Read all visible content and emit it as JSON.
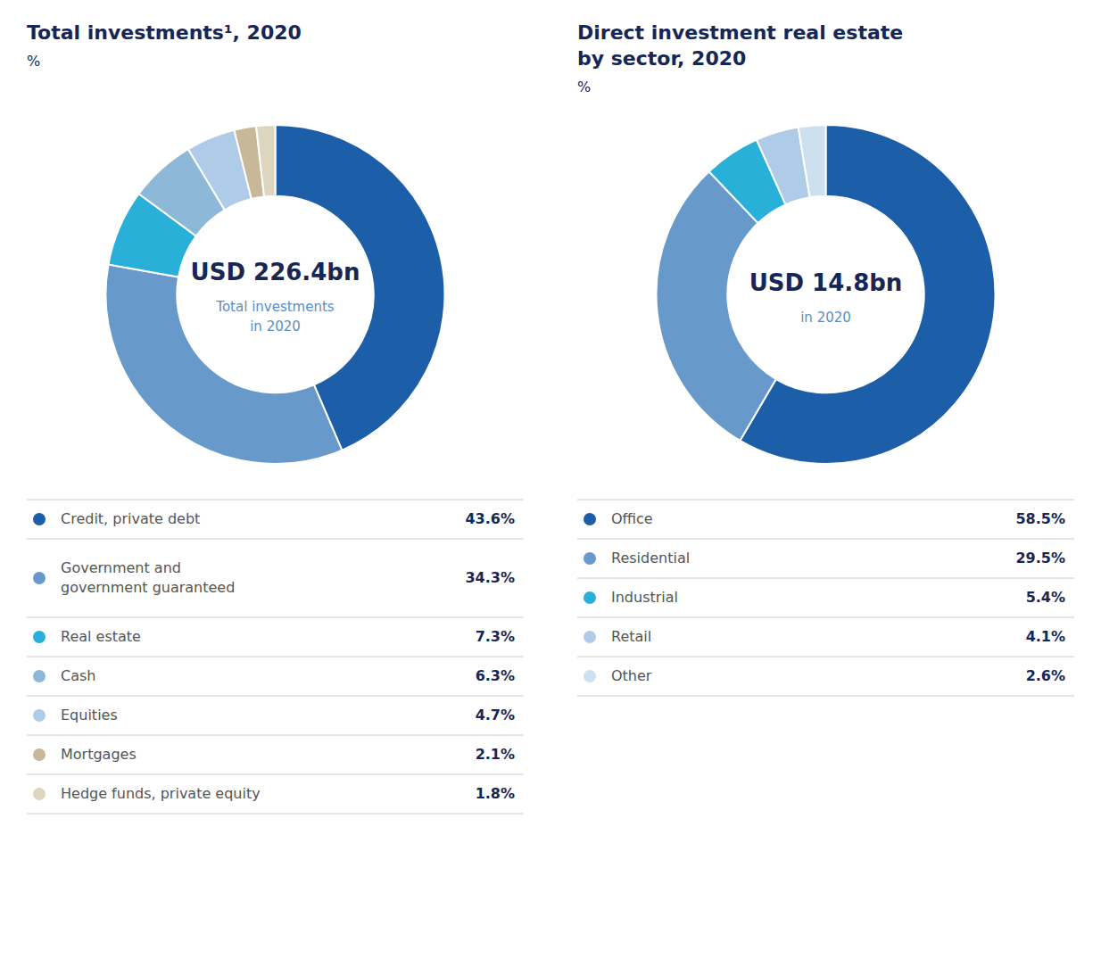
{
  "chart_data": [
    {
      "type": "donut",
      "title": "Total investments¹, 2020",
      "subtitle": "%",
      "annotations": [
        "USD 226.4bn",
        "Total investments",
        "in 2020"
      ],
      "categories": [
        "Credit, private debt",
        "Government and\ngovernment guaranteed",
        "Real estate",
        "Cash",
        "Equities",
        "Mortgages",
        "Hedge funds, private equity"
      ],
      "values": [
        43.6,
        34.3,
        7.3,
        6.3,
        4.7,
        2.1,
        1.8
      ],
      "value_labels": [
        "43.6%",
        "34.3%",
        "7.3%",
        "6.3%",
        "4.7%",
        "2.1%",
        "1.8%"
      ],
      "colors": [
        "#1d5ea8",
        "#6899cb",
        "#29b0d9",
        "#8db8d8",
        "#aecce8",
        "#c8b89a",
        "#ddd5be"
      ],
      "legend": "bottom"
    },
    {
      "type": "donut",
      "title": "Direct investment real estate\nby sector, 2020",
      "subtitle": "%",
      "annotations": [
        "USD 14.8bn",
        "in 2020"
      ],
      "categories": [
        "Office",
        "Residential",
        "Industrial",
        "Retail",
        "Other"
      ],
      "values": [
        58.5,
        29.5,
        5.4,
        4.1,
        2.6
      ],
      "value_labels": [
        "58.5%",
        "29.5%",
        "5.4%",
        "4.1%",
        "2.6%"
      ],
      "colors": [
        "#1d5ea8",
        "#6899cb",
        "#29b0d9",
        "#aecce8",
        "#cde0f0"
      ],
      "legend": "bottom"
    }
  ]
}
